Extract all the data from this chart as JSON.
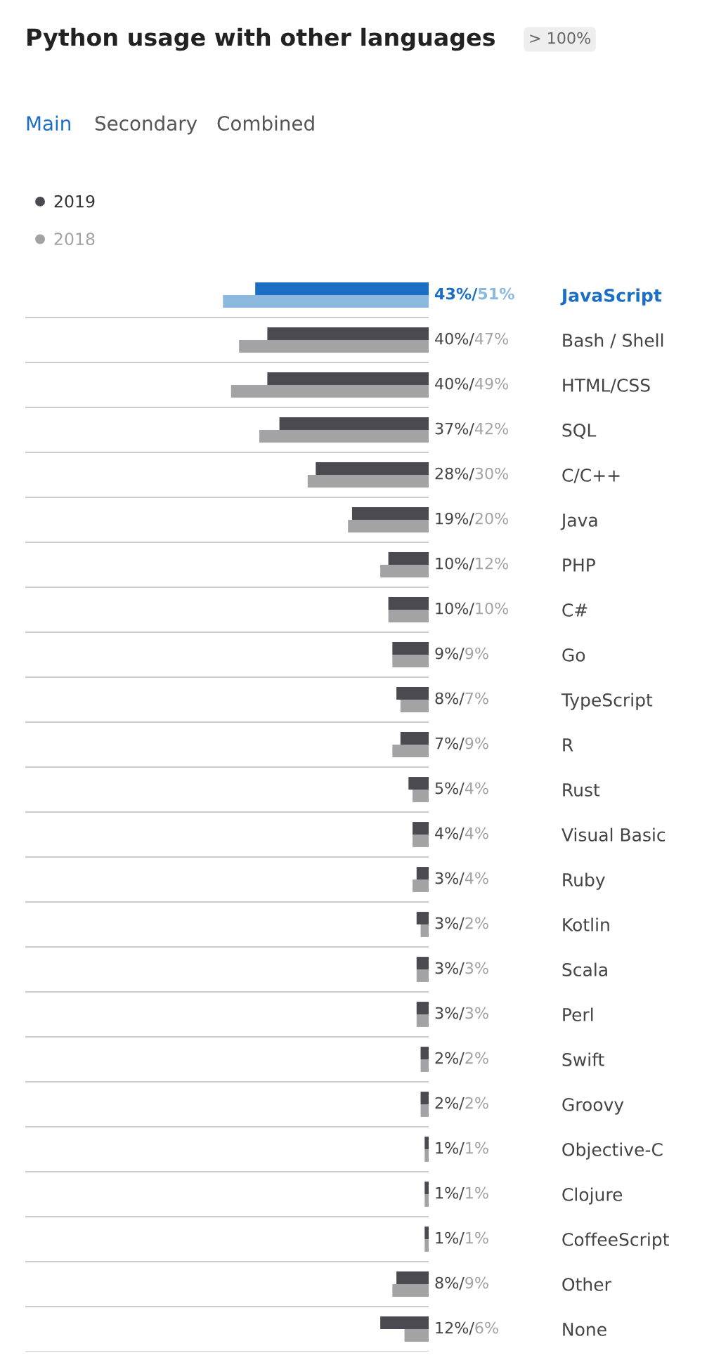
{
  "chart_data": {
    "type": "bar",
    "orientation": "horizontal",
    "title": "Python usage with other languages",
    "annotations": [
      "> 100%",
      "Main",
      "Secondary",
      "Combined"
    ],
    "categories": [
      "JavaScript",
      "Bash / Shell",
      "HTML/CSS",
      "SQL",
      "C/C++",
      "Java",
      "PHP",
      "C#",
      "Go",
      "TypeScript",
      "R",
      "Rust",
      "Visual Basic",
      "Ruby",
      "Kotlin",
      "Scala",
      "Perl",
      "Swift",
      "Groovy",
      "Objective-C",
      "Clojure",
      "CoffeeScript",
      "Other",
      "None"
    ],
    "xlim": [
      100,
      0
    ],
    "tick_labels": "y",
    "legend": "top left",
    "grid": false,
    "series": [
      {
        "name": "2019",
        "color": "#4a4a50",
        "colors": [
          "#1a6fc4",
          "#4a4a50",
          "#4a4a50",
          "#4a4a50",
          "#4a4a50",
          "#4a4a50",
          "#4a4a50",
          "#4a4a50",
          "#4a4a50",
          "#4a4a50",
          "#4a4a50",
          "#4a4a50",
          "#4a4a50",
          "#4a4a50",
          "#4a4a50",
          "#4a4a50",
          "#4a4a50",
          "#4a4a50",
          "#4a4a50",
          "#4a4a50",
          "#4a4a50",
          "#4a4a50",
          "#4a4a50",
          "#4a4a50"
        ],
        "values": [
          43,
          40,
          40,
          37,
          28,
          19,
          10,
          10,
          9,
          8,
          7,
          5,
          4,
          3,
          3,
          3,
          3,
          2,
          2,
          1,
          1,
          1,
          8,
          12
        ],
        "value_labels": [
          "43%/",
          "40%/",
          "40%/",
          "37%/",
          "28%/",
          "19%/",
          "10%/",
          "10%/",
          "9%/",
          "8%/",
          "7%/",
          "5%/",
          "4%/",
          "3%/",
          "3%/",
          "3%/",
          "3%/",
          "2%/",
          "2%/",
          "1%/",
          "1%/",
          "1%/",
          "8%/",
          "12%/"
        ]
      },
      {
        "name": "2018",
        "color": "#a3a3a6",
        "colors": [
          "#8cb8e0",
          "#a3a3a6",
          "#a3a3a6",
          "#a3a3a6",
          "#a3a3a6",
          "#a3a3a6",
          "#a3a3a6",
          "#a3a3a6",
          "#a3a3a6",
          "#a3a3a6",
          "#a3a3a6",
          "#a3a3a6",
          "#a3a3a6",
          "#a3a3a6",
          "#a3a3a6",
          "#a3a3a6",
          "#a3a3a6",
          "#a3a3a6",
          "#a3a3a6",
          "#a3a3a6",
          "#a3a3a6",
          "#a3a3a6",
          "#a3a3a6",
          "#a3a3a6"
        ],
        "values": [
          51,
          47,
          49,
          42,
          30,
          20,
          12,
          10,
          9,
          7,
          9,
          4,
          4,
          4,
          2,
          3,
          3,
          2,
          2,
          1,
          1,
          1,
          9,
          6
        ],
        "value_labels": [
          "51%",
          "47%",
          "49%",
          "42%",
          "30%",
          "20%",
          "12%",
          "10%",
          "9%",
          "7%",
          "9%",
          "4%",
          "4%",
          "4%",
          "2%",
          "3%",
          "3%",
          "2%",
          "2%",
          "1%",
          "1%",
          "1%",
          "9%",
          "6%"
        ]
      }
    ]
  }
}
